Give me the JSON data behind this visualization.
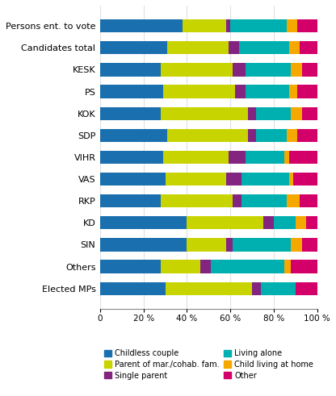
{
  "categories": [
    "Persons ent. to vote",
    "Candidates total",
    "KESK",
    "PS",
    "KOK",
    "SDP",
    "VIHR",
    "VAS",
    "RKP",
    "KD",
    "SIN",
    "Others",
    "Elected MPs"
  ],
  "segments_order": [
    "Childless couple",
    "Parent of mar./cohab. fam.",
    "Single parent",
    "Living alone",
    "Child living at home",
    "Other"
  ],
  "segments": {
    "Childless couple": [
      38,
      31,
      28,
      29,
      28,
      31,
      29,
      30,
      28,
      40,
      40,
      28,
      30
    ],
    "Parent of mar./cohab. fam.": [
      20,
      28,
      33,
      33,
      40,
      37,
      30,
      28,
      33,
      35,
      18,
      18,
      40
    ],
    "Single parent": [
      2,
      5,
      6,
      5,
      4,
      4,
      8,
      7,
      4,
      5,
      3,
      5,
      4
    ],
    "Living alone": [
      26,
      23,
      21,
      20,
      16,
      14,
      18,
      22,
      21,
      10,
      27,
      34,
      16
    ],
    "Child living at home": [
      5,
      5,
      5,
      4,
      5,
      5,
      2,
      2,
      6,
      5,
      5,
      3,
      0
    ],
    "Other": [
      9,
      8,
      7,
      9,
      7,
      9,
      13,
      11,
      8,
      5,
      7,
      12,
      10
    ]
  },
  "colors": {
    "Childless couple": "#1a6faf",
    "Parent of mar./cohab. fam.": "#c8d400",
    "Single parent": "#832481",
    "Living alone": "#00b0b0",
    "Child living at home": "#f5a800",
    "Other": "#d4006a"
  },
  "legend_col1": [
    "Childless couple",
    "Single parent",
    "Child living at home"
  ],
  "legend_col2": [
    "Parent of mar./cohab. fam.",
    "Living alone",
    "Other"
  ],
  "xtick_labels": [
    "0",
    "20 %",
    "40 %",
    "60 %",
    "80 %",
    "100 %"
  ],
  "xticks": [
    0,
    20,
    40,
    60,
    80,
    100
  ],
  "bar_height": 0.6,
  "grid_color": "#e0e0e0",
  "background_color": "#ffffff",
  "label_fontsize": 8.0,
  "tick_fontsize": 7.5,
  "legend_fontsize": 7.0
}
